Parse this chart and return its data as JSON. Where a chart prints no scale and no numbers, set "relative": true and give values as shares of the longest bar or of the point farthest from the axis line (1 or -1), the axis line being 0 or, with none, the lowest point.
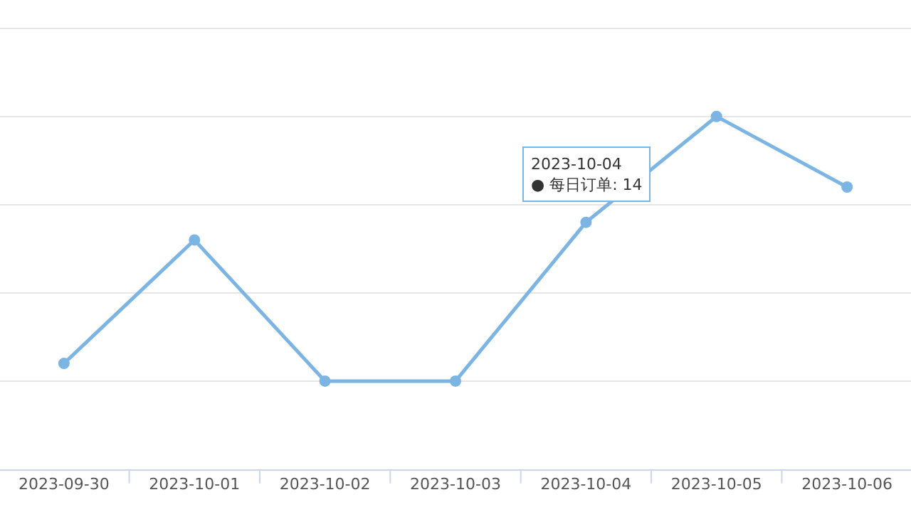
{
  "chart_data": {
    "type": "line",
    "relative": true,
    "categories": [
      "2023-09-30",
      "2023-10-01",
      "2023-10-02",
      "2023-10-03",
      "2023-10-04",
      "2023-10-05",
      "2023-10-06"
    ],
    "series": [
      {
        "color": "#7cb5e4",
        "values": [
          0.3,
          0.65,
          0.25,
          0.25,
          0.7,
          1,
          0.8
        ]
      }
    ],
    "annotations": [
      {
        "text": "2023-10-04\n● 每日订单: 14",
        "x": "2023-10-04",
        "y": 0.7
      }
    ],
    "grid": "y",
    "tick_labels": "x",
    "legend": false,
    "marker": "circle",
    "line_style": "solid"
  }
}
